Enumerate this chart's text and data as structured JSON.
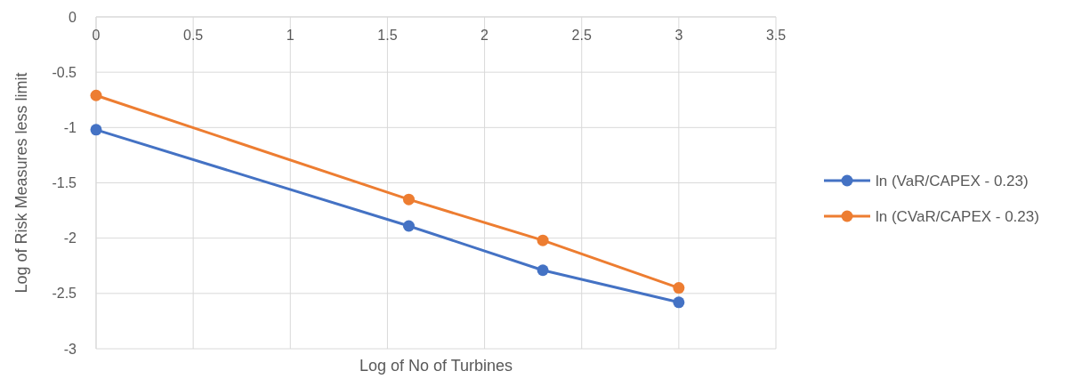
{
  "chart_data": {
    "type": "line",
    "xlabel": "Log of No of Turbines",
    "ylabel": "Log of Risk Measures less limit",
    "xlim": [
      0,
      3.5
    ],
    "xticks": [
      0,
      0.5,
      1,
      1.5,
      2,
      2.5,
      3,
      3.5
    ],
    "ylim": [
      -3,
      0
    ],
    "yticks": [
      -3,
      -2.5,
      -2,
      -1.5,
      -1,
      -0.5,
      0
    ],
    "x": [
      0,
      1.61,
      2.3,
      3
    ],
    "series": [
      {
        "name": "ln (VaR/CAPEX - 0.23)",
        "color": "#4472c4",
        "values": [
          -1.02,
          -1.89,
          -2.29,
          -2.58
        ]
      },
      {
        "name": "ln (CVaR/CAPEX - 0.23)",
        "color": "#ed7d31",
        "values": [
          -0.71,
          -1.65,
          -2.02,
          -2.45
        ]
      }
    ],
    "grid": true,
    "legend": "right",
    "marker": "circle",
    "line_style": "solid"
  }
}
